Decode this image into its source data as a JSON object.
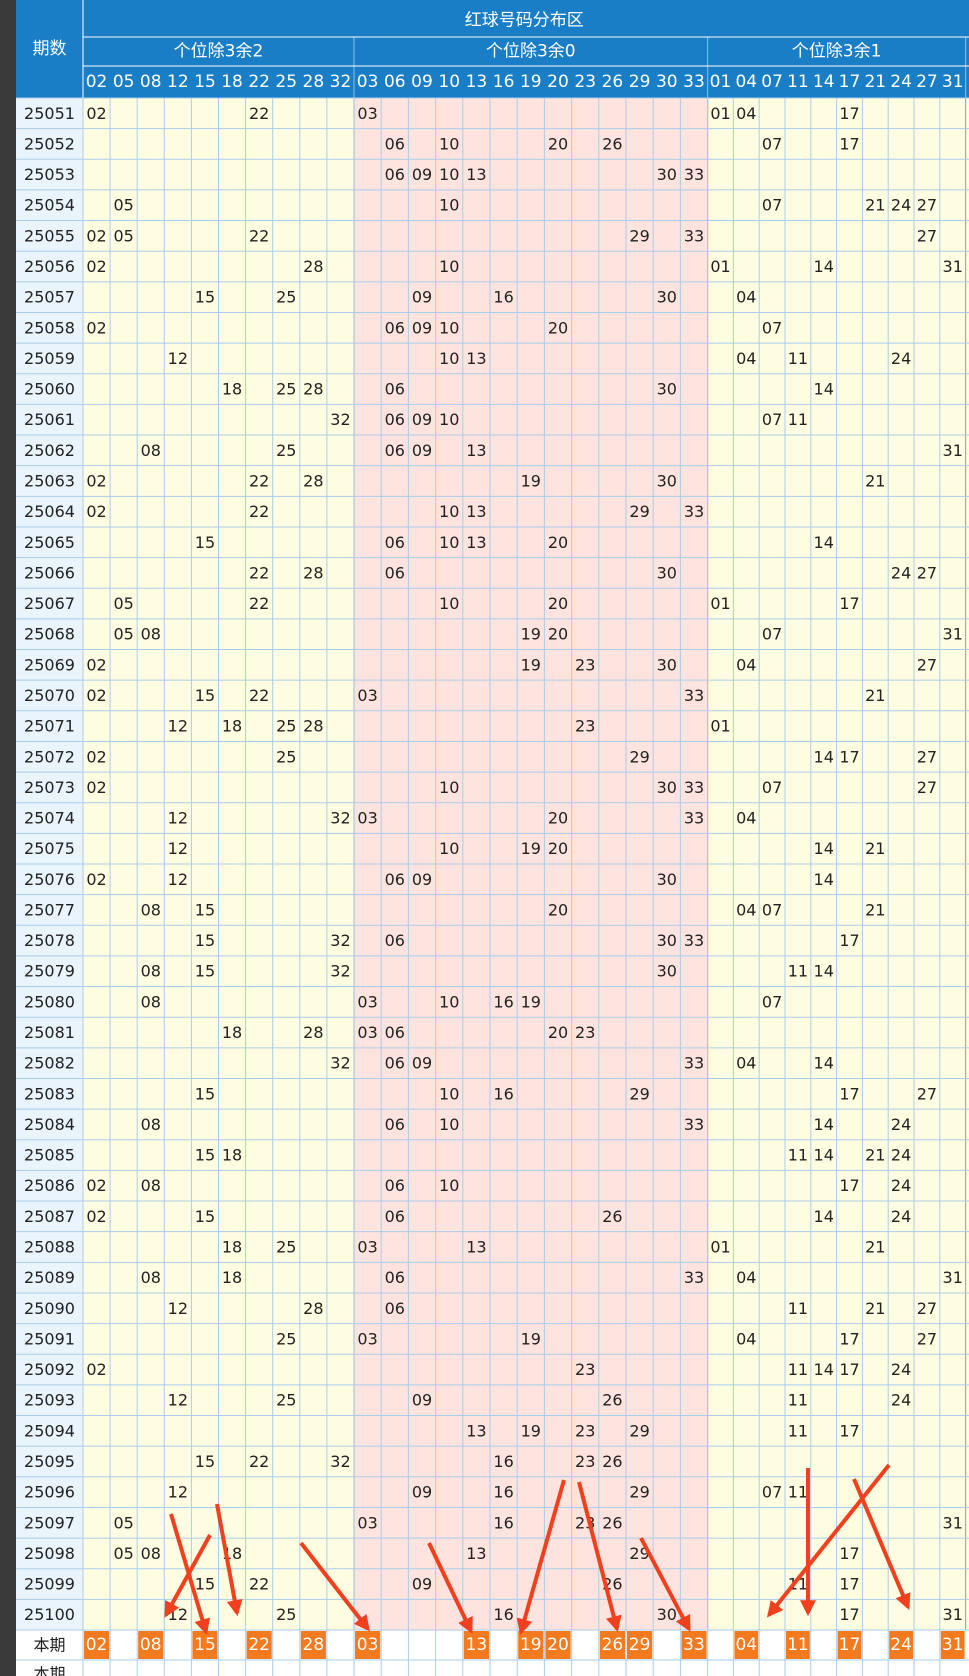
{
  "header": {
    "title": "红球号码分布区",
    "period_label": "期数",
    "groups": [
      {
        "label": "个位除3余2",
        "numbers": [
          "02",
          "05",
          "08",
          "12",
          "15",
          "18",
          "22",
          "25",
          "28",
          "32"
        ]
      },
      {
        "label": "个位除3余0",
        "numbers": [
          "03",
          "06",
          "09",
          "10",
          "13",
          "16",
          "19",
          "20",
          "23",
          "26",
          "29",
          "30",
          "33"
        ]
      },
      {
        "label": "个位除3余1",
        "numbers": [
          "01",
          "04",
          "07",
          "11",
          "14",
          "17",
          "21",
          "24",
          "27",
          "31"
        ]
      }
    ]
  },
  "rows": [
    {
      "period": "25051",
      "numbers": [
        "02",
        "22",
        "03",
        "01",
        "04",
        "17"
      ]
    },
    {
      "period": "25052",
      "numbers": [
        "06",
        "10",
        "20",
        "26",
        "07",
        "17"
      ]
    },
    {
      "period": "25053",
      "numbers": [
        "06",
        "09",
        "10",
        "13",
        "30",
        "33"
      ]
    },
    {
      "period": "25054",
      "numbers": [
        "05",
        "10",
        "07",
        "21",
        "24",
        "27"
      ]
    },
    {
      "period": "25055",
      "numbers": [
        "02",
        "05",
        "22",
        "29",
        "33",
        "27"
      ]
    },
    {
      "period": "25056",
      "numbers": [
        "02",
        "28",
        "10",
        "01",
        "14",
        "31"
      ]
    },
    {
      "period": "25057",
      "numbers": [
        "15",
        "25",
        "09",
        "16",
        "30",
        "04"
      ]
    },
    {
      "period": "25058",
      "numbers": [
        "02",
        "06",
        "09",
        "10",
        "20",
        "07"
      ]
    },
    {
      "period": "25059",
      "numbers": [
        "12",
        "10",
        "13",
        "04",
        "11",
        "24"
      ]
    },
    {
      "period": "25060",
      "numbers": [
        "18",
        "25",
        "28",
        "06",
        "30",
        "14"
      ]
    },
    {
      "period": "25061",
      "numbers": [
        "32",
        "06",
        "09",
        "10",
        "07",
        "11"
      ]
    },
    {
      "period": "25062",
      "numbers": [
        "08",
        "25",
        "06",
        "09",
        "13",
        "31"
      ]
    },
    {
      "period": "25063",
      "numbers": [
        "02",
        "22",
        "28",
        "19",
        "30",
        "21"
      ]
    },
    {
      "period": "25064",
      "numbers": [
        "02",
        "22",
        "10",
        "13",
        "29",
        "33"
      ]
    },
    {
      "period": "25065",
      "numbers": [
        "15",
        "06",
        "10",
        "13",
        "20",
        "14"
      ]
    },
    {
      "period": "25066",
      "numbers": [
        "22",
        "28",
        "06",
        "30",
        "24",
        "27"
      ]
    },
    {
      "period": "25067",
      "numbers": [
        "05",
        "22",
        "10",
        "20",
        "01",
        "17"
      ]
    },
    {
      "period": "25068",
      "numbers": [
        "05",
        "08",
        "19",
        "20",
        "07",
        "31"
      ]
    },
    {
      "period": "25069",
      "numbers": [
        "02",
        "19",
        "23",
        "30",
        "04",
        "27"
      ]
    },
    {
      "period": "25070",
      "numbers": [
        "02",
        "15",
        "22",
        "03",
        "33",
        "21"
      ]
    },
    {
      "period": "25071",
      "numbers": [
        "12",
        "18",
        "25",
        "28",
        "23",
        "01"
      ]
    },
    {
      "period": "25072",
      "numbers": [
        "02",
        "25",
        "29",
        "14",
        "17",
        "27"
      ]
    },
    {
      "period": "25073",
      "numbers": [
        "02",
        "10",
        "30",
        "33",
        "07",
        "27"
      ]
    },
    {
      "period": "25074",
      "numbers": [
        "12",
        "32",
        "03",
        "20",
        "33",
        "04"
      ]
    },
    {
      "period": "25075",
      "numbers": [
        "12",
        "10",
        "19",
        "20",
        "14",
        "21"
      ]
    },
    {
      "period": "25076",
      "numbers": [
        "02",
        "12",
        "06",
        "09",
        "30",
        "14"
      ]
    },
    {
      "period": "25077",
      "numbers": [
        "08",
        "15",
        "20",
        "04",
        "07",
        "21"
      ]
    },
    {
      "period": "25078",
      "numbers": [
        "15",
        "32",
        "06",
        "30",
        "33",
        "17"
      ]
    },
    {
      "period": "25079",
      "numbers": [
        "08",
        "15",
        "32",
        "30",
        "11",
        "14"
      ]
    },
    {
      "period": "25080",
      "numbers": [
        "08",
        "03",
        "10",
        "16",
        "19",
        "07"
      ]
    },
    {
      "period": "25081",
      "numbers": [
        "18",
        "28",
        "03",
        "06",
        "20",
        "23"
      ]
    },
    {
      "period": "25082",
      "numbers": [
        "32",
        "06",
        "09",
        "33",
        "04",
        "14"
      ]
    },
    {
      "period": "25083",
      "numbers": [
        "15",
        "10",
        "16",
        "29",
        "17",
        "27"
      ]
    },
    {
      "period": "25084",
      "numbers": [
        "08",
        "06",
        "10",
        "33",
        "14",
        "24"
      ]
    },
    {
      "period": "25085",
      "numbers": [
        "15",
        "18",
        "11",
        "14",
        "21",
        "24"
      ]
    },
    {
      "period": "25086",
      "numbers": [
        "02",
        "08",
        "06",
        "10",
        "17",
        "24"
      ]
    },
    {
      "period": "25087",
      "numbers": [
        "02",
        "15",
        "06",
        "26",
        "14",
        "24"
      ]
    },
    {
      "period": "25088",
      "numbers": [
        "18",
        "25",
        "03",
        "13",
        "01",
        "21"
      ]
    },
    {
      "period": "25089",
      "numbers": [
        "08",
        "18",
        "06",
        "33",
        "04",
        "31"
      ]
    },
    {
      "period": "25090",
      "numbers": [
        "12",
        "28",
        "06",
        "11",
        "21",
        "27"
      ]
    },
    {
      "period": "25091",
      "numbers": [
        "25",
        "03",
        "19",
        "04",
        "17",
        "27"
      ]
    },
    {
      "period": "25092",
      "numbers": [
        "02",
        "23",
        "11",
        "14",
        "17",
        "24"
      ]
    },
    {
      "period": "25093",
      "numbers": [
        "12",
        "25",
        "09",
        "26",
        "11",
        "24"
      ]
    },
    {
      "period": "25094",
      "numbers": [
        "13",
        "19",
        "23",
        "29",
        "11",
        "17"
      ]
    },
    {
      "period": "25095",
      "numbers": [
        "15",
        "22",
        "32",
        "16",
        "23",
        "26"
      ]
    },
    {
      "period": "25096",
      "numbers": [
        "12",
        "09",
        "16",
        "29",
        "07",
        "11"
      ]
    },
    {
      "period": "25097",
      "numbers": [
        "05",
        "03",
        "16",
        "23",
        "26",
        "31"
      ]
    },
    {
      "period": "25098",
      "numbers": [
        "05",
        "08",
        "18",
        "13",
        "29",
        "17"
      ]
    },
    {
      "period": "25099",
      "numbers": [
        "15",
        "22",
        "09",
        "26",
        "11",
        "17"
      ]
    },
    {
      "period": "25100",
      "numbers": [
        "12",
        "25",
        "16",
        "30",
        "17",
        "31"
      ]
    }
  ],
  "current": {
    "label": "本期",
    "numbers": [
      "02",
      "08",
      "15",
      "22",
      "28",
      "03",
      "13",
      "19",
      "20",
      "26",
      "29",
      "33",
      "04",
      "11",
      "17",
      "24",
      "31"
    ]
  },
  "footer_label": "本期"
}
